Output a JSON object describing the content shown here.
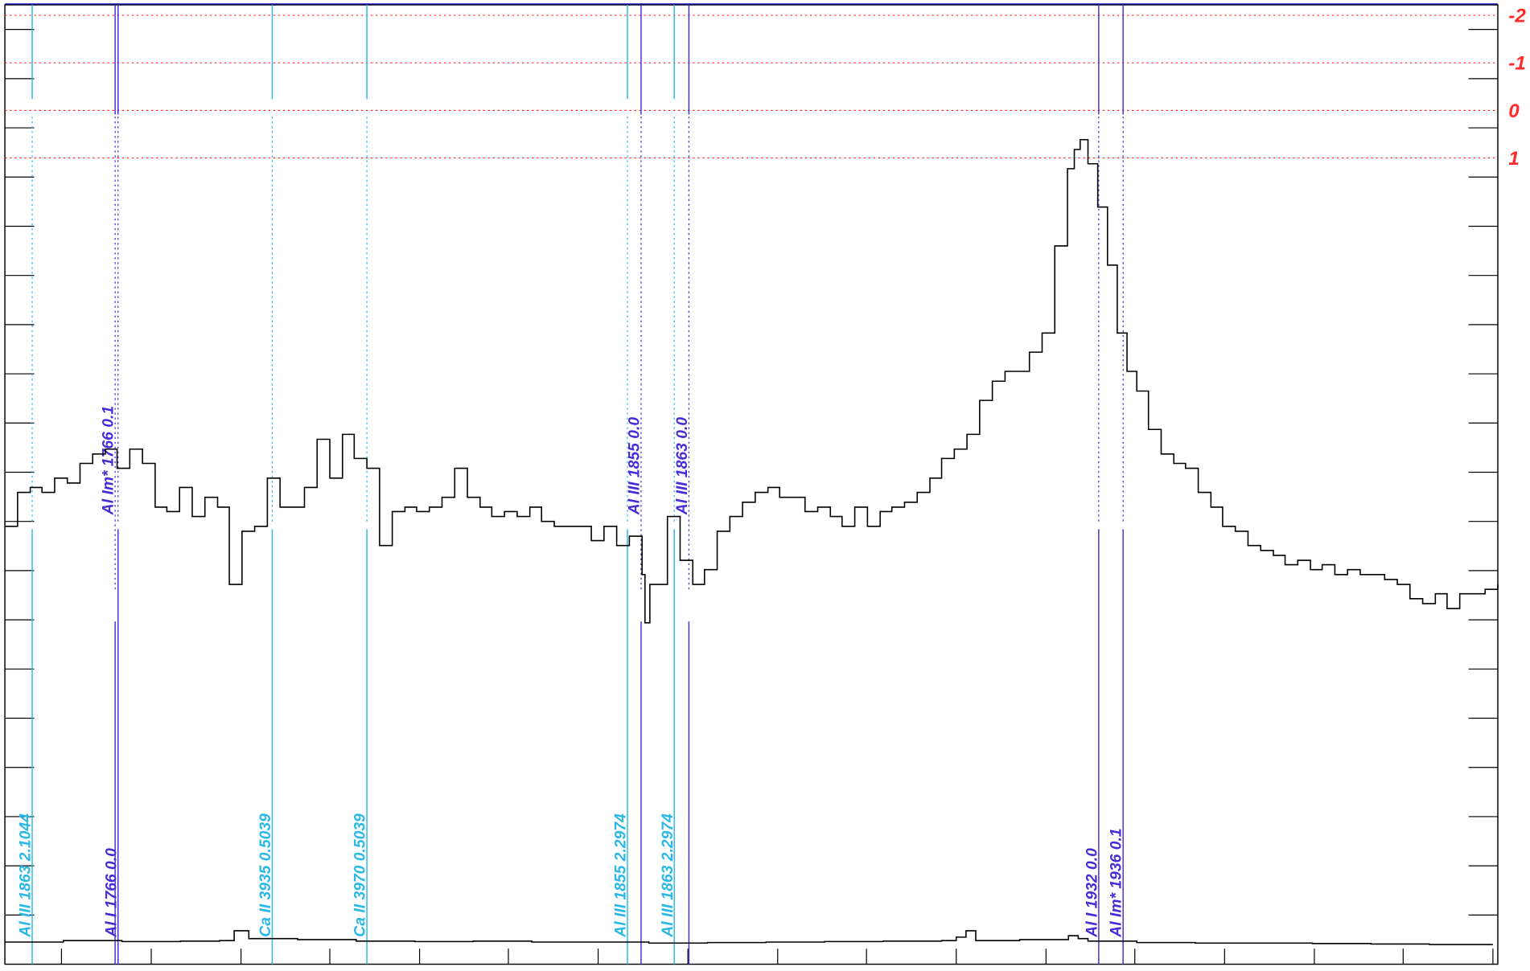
{
  "chart_data": {
    "type": "line",
    "step": true,
    "xlim": [
      0,
      1530
    ],
    "ylim": [
      0,
      19.5
    ],
    "xticks": [
      58,
      150,
      242,
      333,
      425,
      516,
      608,
      700,
      792,
      883,
      975,
      1067,
      1158,
      1250,
      1342,
      1433,
      1525
    ],
    "yticks": [
      1,
      2,
      3,
      4,
      5,
      6,
      7,
      8,
      9,
      10,
      11,
      12,
      13,
      14,
      15,
      16,
      17,
      18,
      19
    ],
    "series": [
      {
        "color": "#000000",
        "x": [
          0,
          13,
          26,
          38,
          51,
          64,
          77,
          90,
          103,
          115,
          128,
          141,
          154,
          166,
          179,
          192,
          205,
          218,
          230,
          243,
          256,
          269,
          282,
          294,
          307,
          320,
          333,
          346,
          358,
          371,
          384,
          397,
          410,
          422,
          435,
          448,
          461,
          474,
          487,
          499,
          512,
          525,
          538,
          550,
          563,
          576,
          589,
          601,
          614,
          627,
          640,
          653,
          656,
          661,
          679,
          692,
          705,
          717,
          730,
          743,
          756,
          769,
          782,
          794,
          807,
          820,
          833,
          846,
          858,
          871,
          884,
          897,
          909,
          922,
          935,
          948,
          960,
          973,
          986,
          999,
          1012,
          1025,
          1038,
          1050,
          1063,
          1076,
          1089,
          1096,
          1102,
          1110,
          1120,
          1130,
          1140,
          1150,
          1160,
          1172,
          1185,
          1198,
          1210,
          1223,
          1236,
          1248,
          1261,
          1274,
          1287,
          1300,
          1312,
          1325,
          1338,
          1350,
          1363,
          1376,
          1389,
          1402,
          1414,
          1427,
          1440,
          1453,
          1466,
          1478,
          1491,
          1504,
          1517,
          1530
        ],
        "values": [
          8.9,
          9.59,
          9.69,
          9.59,
          9.88,
          9.78,
          10.18,
          10.37,
          10.47,
          10.08,
          10.47,
          10.18,
          9.29,
          9.2,
          9.69,
          9.1,
          9.49,
          9.29,
          7.72,
          8.8,
          8.9,
          9.88,
          9.29,
          9.29,
          9.69,
          10.67,
          9.88,
          10.77,
          10.28,
          10.08,
          8.51,
          9.2,
          9.29,
          9.2,
          9.29,
          9.49,
          10.08,
          9.49,
          9.29,
          9.1,
          9.2,
          9.1,
          9.29,
          9.0,
          8.9,
          8.9,
          8.9,
          8.61,
          8.9,
          8.51,
          8.7,
          7.92,
          6.94,
          7.72,
          9.1,
          8.21,
          7.72,
          8.02,
          8.8,
          9.1,
          9.39,
          9.59,
          9.69,
          9.49,
          9.49,
          9.2,
          9.29,
          9.1,
          8.9,
          9.29,
          8.9,
          9.2,
          9.29,
          9.39,
          9.59,
          9.88,
          10.28,
          10.47,
          10.77,
          11.46,
          11.85,
          12.05,
          12.05,
          12.44,
          12.83,
          14.6,
          16.17,
          16.56,
          16.76,
          16.27,
          15.39,
          14.21,
          12.83,
          12.05,
          11.65,
          10.87,
          10.37,
          10.18,
          10.08,
          9.59,
          9.29,
          8.9,
          8.8,
          8.51,
          8.41,
          8.31,
          8.12,
          8.21,
          8.02,
          8.12,
          7.92,
          8.02,
          7.92,
          7.92,
          7.82,
          7.72,
          7.43,
          7.33,
          7.53,
          7.23,
          7.53,
          7.53,
          7.62,
          7.72
        ]
      },
      {
        "color": "#000000",
        "x": [
          0,
          60,
          120,
          180,
          220,
          235,
          250,
          300,
          360,
          420,
          480,
          540,
          600,
          660,
          720,
          780,
          840,
          900,
          960,
          975,
          985,
          995,
          1040,
          1090,
          1100,
          1110,
          1160,
          1220,
          1280,
          1340,
          1400,
          1460,
          1525
        ],
        "values": [
          0.45,
          0.48,
          0.46,
          0.47,
          0.48,
          0.68,
          0.52,
          0.5,
          0.47,
          0.46,
          0.47,
          0.45,
          0.45,
          0.43,
          0.44,
          0.45,
          0.46,
          0.47,
          0.48,
          0.55,
          0.68,
          0.48,
          0.5,
          0.58,
          0.52,
          0.47,
          0.44,
          0.43,
          0.43,
          0.42,
          0.41,
          0.4,
          0.4
        ]
      }
    ],
    "y2lim": [
      17.96,
      -2.22
    ],
    "y2ticks": [
      -2,
      -1,
      0,
      1
    ],
    "y2color": "#ff2a2a",
    "markers": [
      {
        "x": 28,
        "label": "Al III 1863 2.1044",
        "color": "#29b8e8",
        "position": "bottom"
      },
      {
        "x": 113,
        "label": "Al Im* 1766 0.1",
        "color": "#4a2bd8",
        "position": "top"
      },
      {
        "x": 116,
        "label": "Al I 1766 0.0",
        "color": "#4a2bd8",
        "position": "bottom"
      },
      {
        "x": 274,
        "label": "Ca II 3935 0.5039",
        "color": "#29b8e8",
        "position": "bottom"
      },
      {
        "x": 371,
        "label": "Ca II 3970 0.5039",
        "color": "#29b8e8",
        "position": "bottom"
      },
      {
        "x": 638,
        "label": "Al III 1855 2.2974",
        "color": "#29b8e8",
        "position": "bottom"
      },
      {
        "x": 652,
        "label": "Al III 1855 0.0",
        "color": "#4a2bd8",
        "position": "top"
      },
      {
        "x": 686,
        "label": "Al III 1863 2.2974",
        "color": "#29b8e8",
        "position": "bottom"
      },
      {
        "x": 701,
        "label": "Al III 1863 0.0",
        "color": "#4a2bd8",
        "position": "top"
      },
      {
        "x": 1121,
        "label": "Al I 1932 0.0",
        "color": "#4a2bd8",
        "position": "bottom"
      },
      {
        "x": 1146,
        "label": "Al Im* 1936 0.1",
        "color": "#4a2bd8",
        "position": "bottom"
      }
    ]
  }
}
